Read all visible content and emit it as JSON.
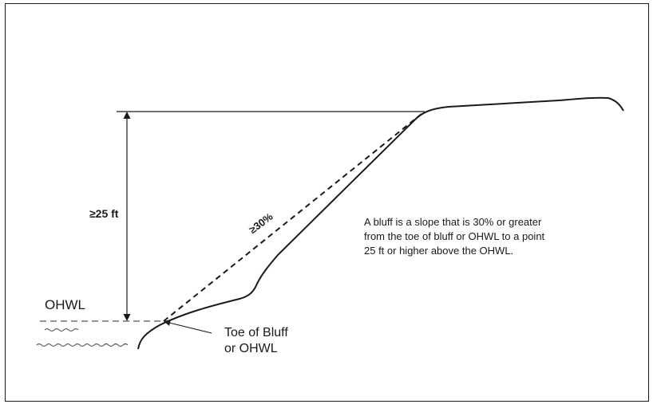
{
  "labels": {
    "height": "≥25 ft",
    "slope": "≥30%",
    "ohwl": "OHWL",
    "toe_line1": "Toe of Bluff",
    "toe_line2": "or OHWL"
  },
  "definition": {
    "line1": "A bluff is a slope that is 30% or greater",
    "line2": "from the toe of bluff or OHWL to a point",
    "line3": "25 ft or higher above the OHWL."
  },
  "colors": {
    "ink": "#1a1a1a",
    "water_line": "#555555",
    "background": "#ffffff"
  }
}
